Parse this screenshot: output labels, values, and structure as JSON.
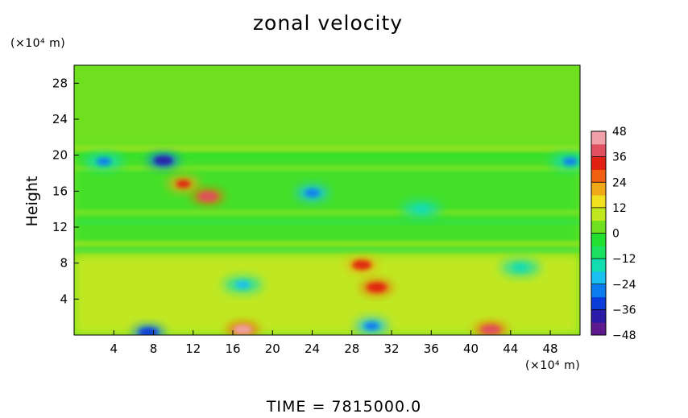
{
  "chart_data": {
    "type": "heatmap",
    "title": "zonal velocity",
    "ylabel": "Height",
    "xlabel": "",
    "x_unit_label": "(×10⁴ m)",
    "y_unit_label": "(×10⁴ m)",
    "footer": "TIME  =  7815000.0",
    "xlim": [
      0,
      51
    ],
    "ylim": [
      0,
      30
    ],
    "x_ticks": [
      4,
      8,
      12,
      16,
      20,
      24,
      28,
      32,
      36,
      40,
      44,
      48
    ],
    "y_ticks": [
      4,
      8,
      12,
      16,
      20,
      24,
      28
    ],
    "colorbar": {
      "levels": [
        48,
        36,
        24,
        12,
        0,
        -12,
        -24,
        -36,
        -48
      ],
      "range": [
        -48,
        48
      ],
      "colors": [
        "#5c1a8e",
        "#2a1aa8",
        "#0a3cd8",
        "#0a7cf0",
        "#1cc0f0",
        "#12dcb0",
        "#1ce060",
        "#22e030",
        "#6ee020",
        "#c0e820",
        "#f0e020",
        "#f0a818",
        "#f06010",
        "#e02010",
        "#e05060",
        "#f0a0a8"
      ]
    },
    "features": [
      {
        "x": 9,
        "y": 19.4,
        "value": -40
      },
      {
        "x": 3,
        "y": 19.3,
        "value": -25
      },
      {
        "x": 50,
        "y": 19.3,
        "value": -25
      },
      {
        "x": 11,
        "y": 16.8,
        "value": 30
      },
      {
        "x": 13.5,
        "y": 15.4,
        "value": 38
      },
      {
        "x": 24,
        "y": 15.8,
        "value": -30
      },
      {
        "x": 29,
        "y": 7.8,
        "value": 32
      },
      {
        "x": 30.5,
        "y": 5.3,
        "value": 35
      },
      {
        "x": 17,
        "y": 0.6,
        "value": 42
      },
      {
        "x": 42,
        "y": 0.6,
        "value": 40
      },
      {
        "x": 7.5,
        "y": 0.3,
        "value": -36
      },
      {
        "x": 30,
        "y": 1,
        "value": -26
      },
      {
        "x": 17,
        "y": 5.6,
        "value": -20
      },
      {
        "x": 45,
        "y": 7.5,
        "value": -18
      },
      {
        "x": 35,
        "y": 14,
        "value": -18
      }
    ]
  }
}
